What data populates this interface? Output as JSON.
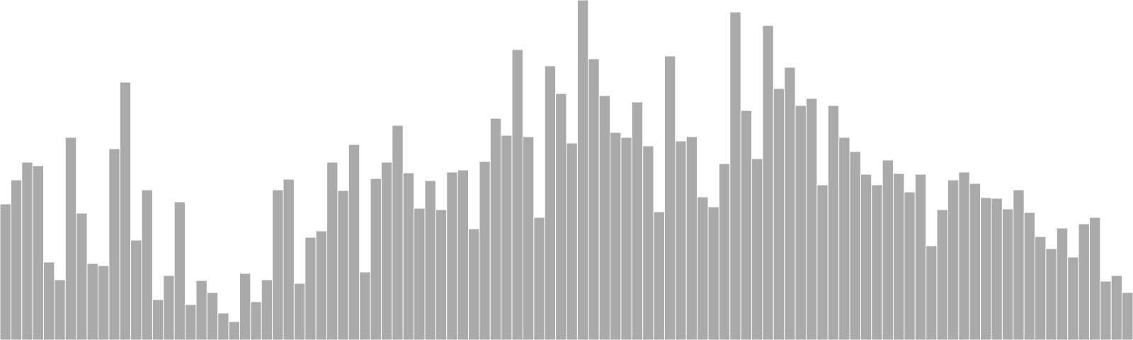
{
  "chart_data": {
    "type": "bar",
    "title": "",
    "xlabel": "",
    "ylabel": "",
    "ylim": [
      0,
      480
    ],
    "grid": false,
    "legend": "none",
    "bar_color": "#aaaaaa",
    "values": [
      192,
      226,
      251,
      246,
      110,
      85,
      286,
      179,
      108,
      105,
      270,
      364,
      141,
      212,
      57,
      91,
      195,
      50,
      84,
      67,
      38,
      26,
      94,
      54,
      85,
      212,
      227,
      80,
      145,
      154,
      251,
      211,
      276,
      96,
      228,
      251,
      303,
      236,
      186,
      225,
      184,
      237,
      240,
      157,
      252,
      313,
      289,
      410,
      287,
      173,
      387,
      348,
      278,
      480,
      397,
      345,
      293,
      286,
      336,
      274,
      181,
      401,
      281,
      287,
      202,
      188,
      249,
      463,
      324,
      256,
      444,
      355,
      385,
      331,
      341,
      219,
      331,
      286,
      266,
      234,
      219,
      254,
      235,
      209,
      234,
      133,
      184,
      226,
      237,
      221,
      201,
      200,
      185,
      212,
      180,
      146,
      129,
      158,
      117,
      164,
      173,
      83,
      91,
      67
    ]
  }
}
